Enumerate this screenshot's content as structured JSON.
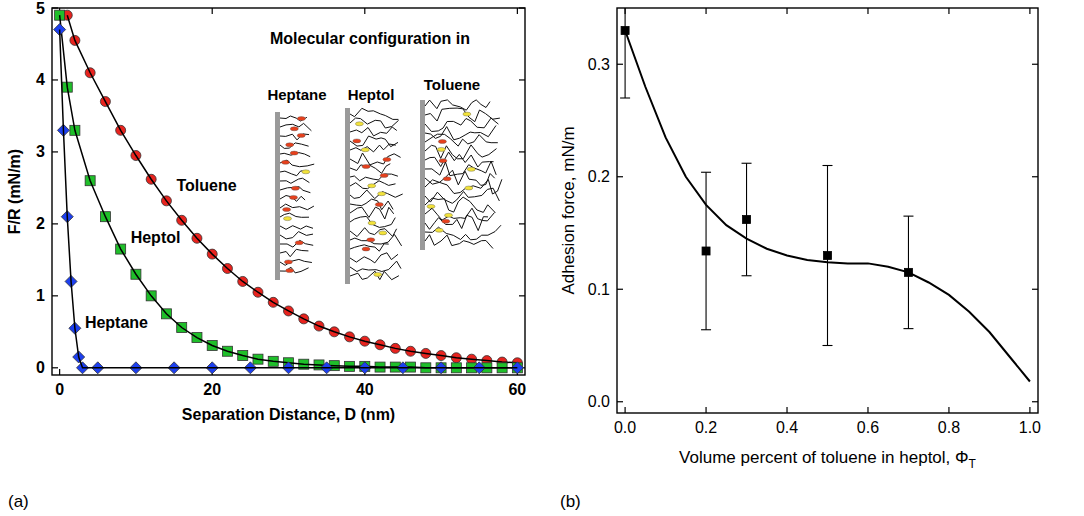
{
  "chart_data": [
    {
      "type": "scatter",
      "panel_label": "(a)",
      "xlabel": "Separation Distance, D (nm)",
      "ylabel": "F/R (mN/m)",
      "xlim": [
        -1,
        61
      ],
      "ylim": [
        -0.1,
        5
      ],
      "xticks": [
        0,
        20,
        40,
        60
      ],
      "yticks": [
        0,
        1,
        2,
        3,
        4,
        5
      ],
      "inset": {
        "title": "Molecular configuration in",
        "labels": [
          "Heptane",
          "Heptol",
          "Toluene"
        ]
      },
      "series": [
        {
          "name": "Toluene",
          "color": "#e8231e",
          "marker": "circle",
          "line_style": "solid",
          "x": [
            1,
            2,
            4,
            6,
            8,
            10,
            12,
            14,
            16,
            18,
            20,
            22,
            24,
            26,
            28,
            30,
            32,
            34,
            36,
            38,
            40,
            42,
            44,
            46,
            48,
            50,
            52,
            54,
            56,
            58,
            60
          ],
          "values": [
            4.9,
            4.55,
            4.1,
            3.7,
            3.3,
            2.95,
            2.62,
            2.32,
            2.05,
            1.8,
            1.58,
            1.38,
            1.2,
            1.05,
            0.91,
            0.79,
            0.68,
            0.58,
            0.5,
            0.43,
            0.37,
            0.32,
            0.27,
            0.23,
            0.2,
            0.17,
            0.14,
            0.12,
            0.1,
            0.08,
            0.07
          ]
        },
        {
          "name": "Heptol",
          "color": "#1fbf2a",
          "marker": "square",
          "line_style": "solid",
          "x": [
            0,
            1,
            2,
            4,
            6,
            8,
            10,
            12,
            14,
            16,
            18,
            20,
            22,
            24,
            26,
            28,
            30,
            32,
            34,
            36,
            38,
            40,
            42,
            44,
            46,
            48,
            50,
            52,
            54,
            56,
            58,
            60
          ],
          "values": [
            4.9,
            3.9,
            3.3,
            2.6,
            2.1,
            1.65,
            1.3,
            1.0,
            0.75,
            0.56,
            0.42,
            0.31,
            0.23,
            0.17,
            0.12,
            0.09,
            0.07,
            0.05,
            0.04,
            0.03,
            0.02,
            0.02,
            0.01,
            0.01,
            0.01,
            0,
            0,
            0,
            0,
            0,
            0,
            0
          ]
        },
        {
          "name": "Heptane",
          "color": "#1c3ff0",
          "marker": "diamond",
          "line_style": "solid",
          "x": [
            0,
            0.5,
            1,
            1.5,
            2,
            2.5,
            3,
            5,
            10,
            15,
            20,
            25,
            30,
            35,
            40,
            45,
            50,
            55,
            60
          ],
          "values": [
            4.7,
            3.3,
            2.1,
            1.2,
            0.55,
            0.15,
            0,
            0,
            0,
            0,
            0,
            0,
            0,
            0,
            0,
            0,
            0,
            0,
            0
          ]
        }
      ]
    },
    {
      "type": "scatter",
      "panel_label": "(b)",
      "xlabel": "Volume percent of toluene in heptol, Φ",
      "xlabel_subscript": "T",
      "ylabel": "Adhesion force, mN/m",
      "xlim": [
        -0.02,
        1.02
      ],
      "ylim": [
        -0.01,
        0.35
      ],
      "xticks": [
        {
          "value": 0,
          "label": "0.0"
        },
        0.2,
        0.4,
        0.6,
        0.8,
        {
          "value": 1,
          "label": "1.0"
        }
      ],
      "yticks": [
        {
          "value": 0,
          "label": "0.0"
        },
        0.1,
        0.2,
        0.3
      ],
      "series": [
        {
          "type": "line",
          "color": "#000000",
          "line_style": "solid",
          "x": [
            0,
            0.05,
            0.1,
            0.15,
            0.2,
            0.25,
            0.3,
            0.35,
            0.4,
            0.45,
            0.5,
            0.55,
            0.6,
            0.65,
            0.7,
            0.75,
            0.8,
            0.85,
            0.9,
            0.95,
            1.0
          ],
          "values": [
            0.33,
            0.28,
            0.235,
            0.2,
            0.175,
            0.157,
            0.145,
            0.136,
            0.13,
            0.126,
            0.124,
            0.123,
            0.123,
            0.12,
            0.115,
            0.106,
            0.095,
            0.08,
            0.062,
            0.04,
            0.018
          ]
        },
        {
          "type": "scatter",
          "color": "#000000",
          "marker": "square",
          "x": [
            0,
            0.2,
            0.3,
            0.5,
            0.7
          ],
          "values": [
            0.33,
            0.134,
            0.162,
            0.13,
            0.115
          ],
          "errors": [
            0.06,
            0.07,
            0.05,
            0.08,
            0.05
          ]
        }
      ]
    }
  ]
}
